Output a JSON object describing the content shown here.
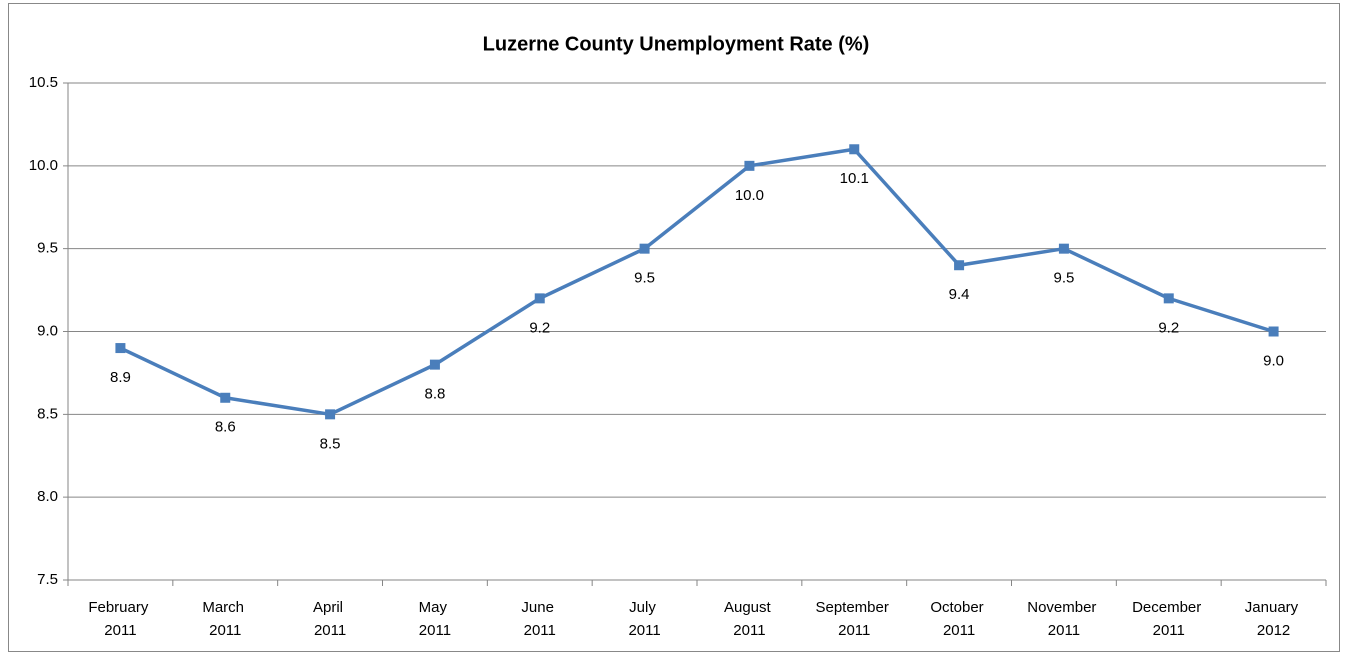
{
  "chart_data": {
    "type": "line",
    "title": "Luzerne County Unemployment Rate (%)",
    "categories": [
      "February 2011",
      "March 2011",
      "April 2011",
      "May 2011",
      "June 2011",
      "July 2011",
      "August 2011",
      "September 2011",
      "October 2011",
      "November 2011",
      "December 2011",
      "January 2012"
    ],
    "series": [
      {
        "name": "Unemployment Rate",
        "color": "#4a7ebb",
        "values": [
          8.9,
          8.6,
          8.5,
          8.8,
          9.2,
          9.5,
          10.0,
          10.1,
          9.4,
          9.5,
          9.2,
          9.0
        ],
        "value_labels": [
          "8.9",
          "8.6",
          "8.5",
          "8.8",
          "9.2",
          "9.5",
          "10.0",
          "10.1",
          "9.4",
          "9.5",
          "9.2",
          "9.0"
        ]
      }
    ],
    "ylim": [
      7.5,
      10.5
    ],
    "yticks": [
      7.5,
      {
        "value": 8,
        "label": "8.0"
      },
      8.5,
      {
        "value": 9,
        "label": "9.0"
      },
      9.5,
      {
        "value": 10,
        "label": "10.0"
      },
      10.5
    ],
    "grid": true
  }
}
